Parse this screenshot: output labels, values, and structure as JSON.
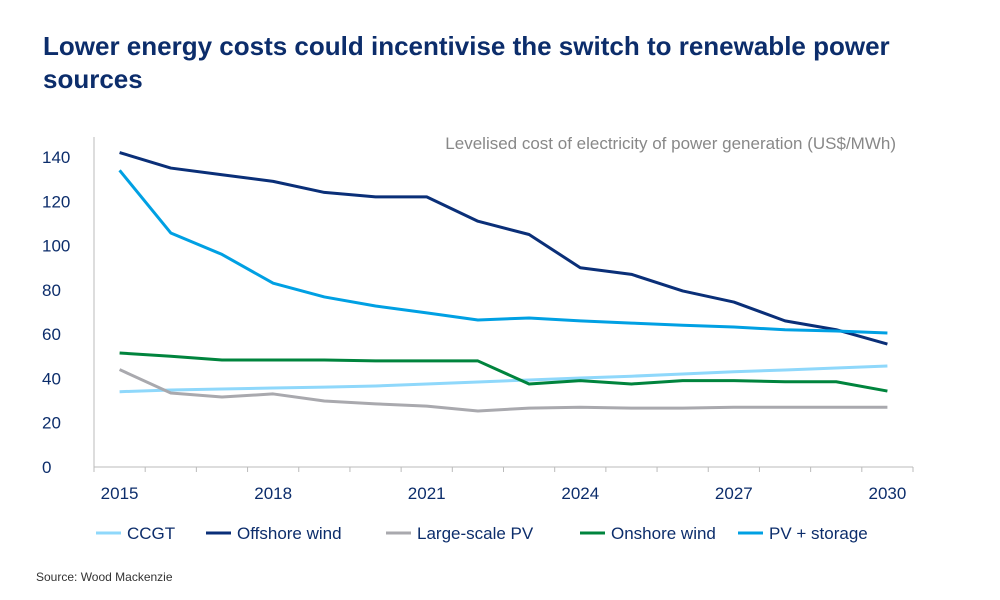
{
  "title": "Lower energy costs could incentivise the switch to renewable power sources",
  "source": "Source: Wood Mackenzie",
  "chart_data": {
    "type": "line",
    "title": "Levelised cost of electricity of power generation (US$/MWh)",
    "x": [
      2015,
      2016,
      2017,
      2018,
      2019,
      2020,
      2021,
      2022,
      2023,
      2024,
      2025,
      2026,
      2027,
      2028,
      2029,
      2030
    ],
    "xticks": [
      "2015",
      "2018",
      "2021",
      "2024",
      "2027",
      "2030"
    ],
    "yticks": [
      0,
      20,
      40,
      60,
      80,
      100,
      120,
      140
    ],
    "ylim": [
      0,
      140
    ],
    "grid": false,
    "legend": "bottom",
    "series": [
      {
        "name": "CCGT",
        "color": "#8fd8fb",
        "values": [
          34,
          34.8,
          35.2,
          35.7,
          36.1,
          36.6,
          37.5,
          38.4,
          39.3,
          40.2,
          41,
          42,
          43,
          43.8,
          44.7,
          45.6
        ]
      },
      {
        "name": "Offshore wind",
        "color": "#0a2f78",
        "values": [
          142,
          135,
          132,
          129,
          124,
          122,
          122,
          111,
          105,
          90,
          87,
          79.5,
          74.5,
          66,
          62,
          55.5
        ]
      },
      {
        "name": "Large-scale PV",
        "color": "#a9a9ae",
        "values": [
          44,
          33.4,
          31.6,
          33,
          29.8,
          28.5,
          27.5,
          25.3,
          26.6,
          27,
          26.6,
          26.6,
          27,
          27,
          27,
          27
        ]
      },
      {
        "name": "Onshore wind",
        "color": "#00843d",
        "values": [
          51.5,
          50,
          48.3,
          48.3,
          48.3,
          47.9,
          47.9,
          47.9,
          37.5,
          39,
          37.5,
          39,
          39,
          38.5,
          38.5,
          34.3
        ]
      },
      {
        "name": "PV + storage",
        "color": "#00a0e3",
        "values": [
          134,
          105.7,
          96,
          83,
          76.8,
          72.7,
          69.6,
          66.4,
          67.3,
          66,
          65,
          64,
          63.2,
          62,
          61.4,
          60.5
        ]
      }
    ]
  }
}
